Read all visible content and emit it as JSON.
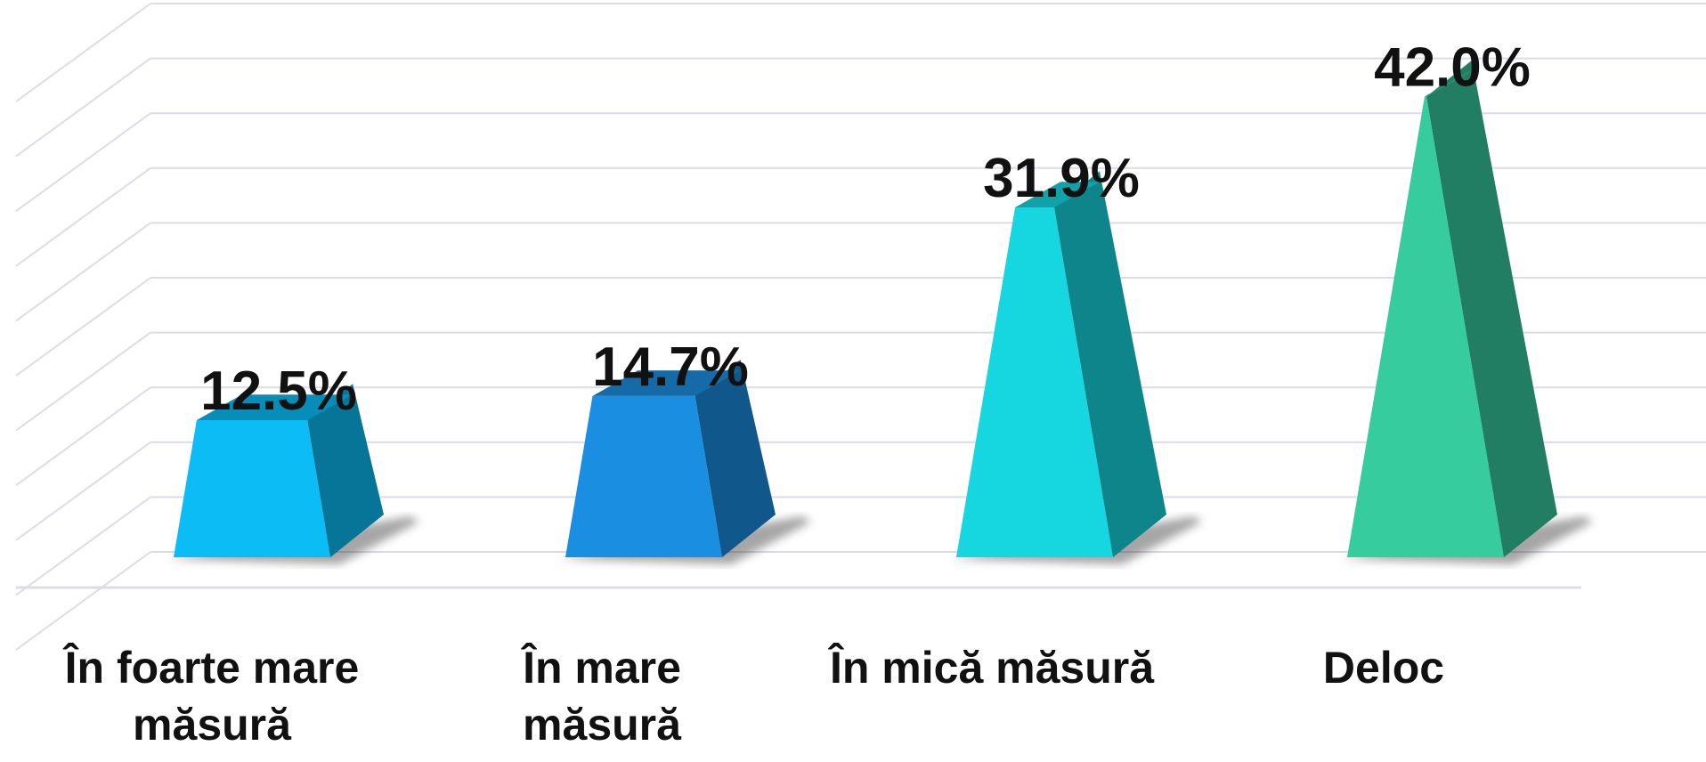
{
  "chart_data": {
    "type": "bar",
    "categories": [
      "În foarte mare măsură",
      "În mare măsură",
      "În mică măsură",
      "Deloc"
    ],
    "values": [
      12.5,
      14.7,
      31.9,
      42.0
    ],
    "value_labels": [
      "12.5%",
      "14.7%",
      "31.9%",
      "42.0%"
    ],
    "colors": [
      "#0bbcf5",
      "#1a8ee0",
      "#16d6e0",
      "#37cc9e"
    ],
    "ylim": [
      0,
      50
    ],
    "yticks": [
      0,
      5,
      10,
      15,
      20,
      25,
      30,
      35,
      40,
      45,
      50
    ],
    "grid": true
  }
}
